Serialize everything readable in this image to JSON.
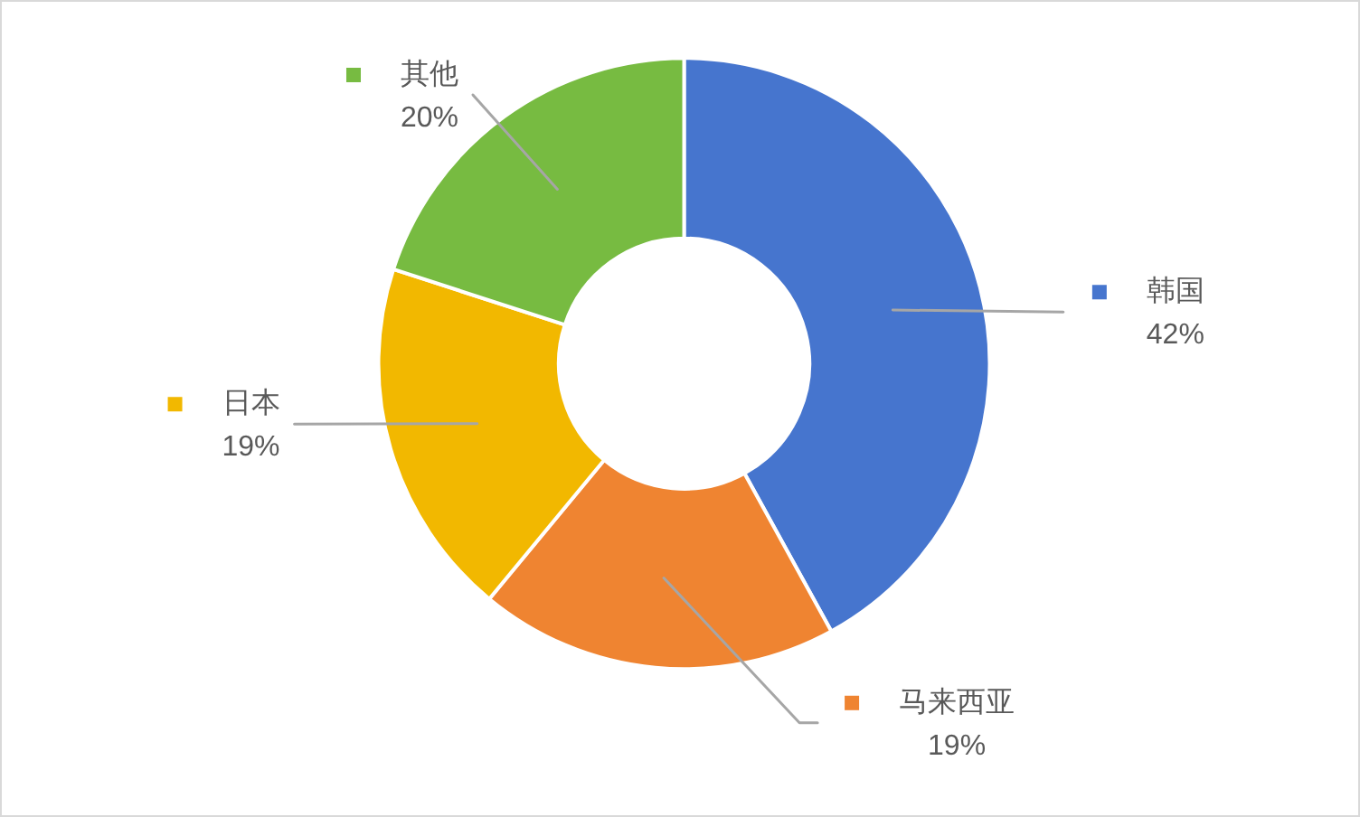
{
  "chart_data": {
    "type": "donut",
    "categories": [
      "韩国",
      "马来西亚",
      "日本",
      "其他"
    ],
    "values": [
      42,
      19,
      19,
      20
    ],
    "colors": [
      "#4675ce",
      "#ef8431",
      "#f2b800",
      "#77bb41"
    ],
    "value_labels": [
      "42%",
      "19%",
      "19%",
      "20%"
    ],
    "legend": "right"
  }
}
